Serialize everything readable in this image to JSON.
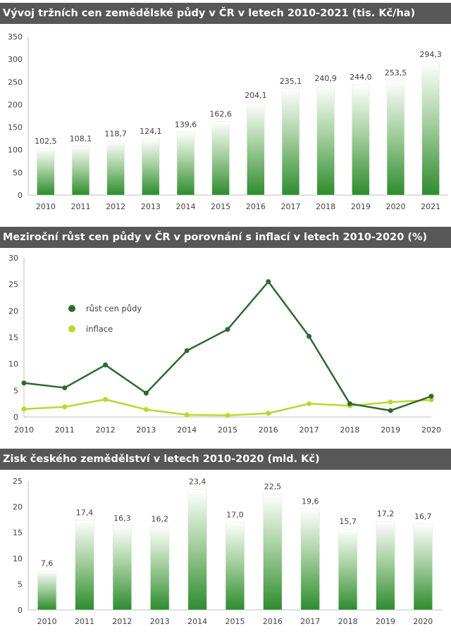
{
  "chart_data": [
    {
      "type": "bar",
      "title": "Vývoj tržních cen zemědělské půdy v ČR v letech 2010-2021 (tis. Kč/ha)",
      "categories": [
        "2010",
        "2011",
        "2012",
        "2013",
        "2014",
        "2015",
        "2016",
        "2017",
        "2018",
        "2019",
        "2020",
        "2021"
      ],
      "values": [
        102.5,
        108.1,
        118.7,
        124.1,
        139.6,
        162.6,
        204.1,
        235.1,
        240.9,
        244.0,
        253.5,
        294.3
      ],
      "labels": [
        "102,5",
        "108,1",
        "118,7",
        "124,1",
        "139,6",
        "162,6",
        "204,1",
        "235,1",
        "240,9",
        "244,0",
        "253,5",
        "294,3"
      ],
      "yticks": [
        "0",
        "50",
        "100",
        "150",
        "200",
        "250",
        "300",
        "350"
      ],
      "ylim": [
        0,
        350
      ],
      "xlabel": "",
      "ylabel": "",
      "grid": false
    },
    {
      "type": "line",
      "title": "Meziroční růst cen půdy v ČR v porovnání s inflací v letech 2010-2020 (%)",
      "x": [
        "2010",
        "2011",
        "2012",
        "2013",
        "2014",
        "2015",
        "2016",
        "2017",
        "2018",
        "2019",
        "2020"
      ],
      "series": [
        {
          "name": "růst cen půdy",
          "color": "#2d6a2e",
          "values": [
            6.4,
            5.5,
            9.8,
            4.5,
            12.5,
            16.5,
            25.5,
            15.2,
            2.5,
            1.2,
            3.9
          ]
        },
        {
          "name": "inflace",
          "color": "#b8d92a",
          "values": [
            1.5,
            1.9,
            3.3,
            1.4,
            0.4,
            0.3,
            0.7,
            2.5,
            2.1,
            2.8,
            3.2
          ]
        }
      ],
      "yticks": [
        "0",
        "5",
        "10",
        "15",
        "20",
        "25",
        "30"
      ],
      "ylim": [
        0,
        30
      ],
      "legend_position": "left",
      "grid": false
    },
    {
      "type": "bar",
      "title": "Zisk českého zemědělství v letech 2010-2020 (mld. Kč)",
      "categories": [
        "2010",
        "2011",
        "2012",
        "2013",
        "2014",
        "2015",
        "2016",
        "2017",
        "2018",
        "2019",
        "2020"
      ],
      "values": [
        7.6,
        17.4,
        16.3,
        16.2,
        23.4,
        17.0,
        22.5,
        19.6,
        15.7,
        17.2,
        16.7
      ],
      "labels": [
        "7,6",
        "17,4",
        "16,3",
        "16,2",
        "23,4",
        "17,0",
        "22,5",
        "19,6",
        "15,7",
        "17,2",
        "16,7"
      ],
      "yticks": [
        "0",
        "5",
        "10",
        "15",
        "20",
        "25"
      ],
      "ylim": [
        0,
        25
      ],
      "xlabel": "",
      "ylabel": "",
      "grid": false
    }
  ]
}
